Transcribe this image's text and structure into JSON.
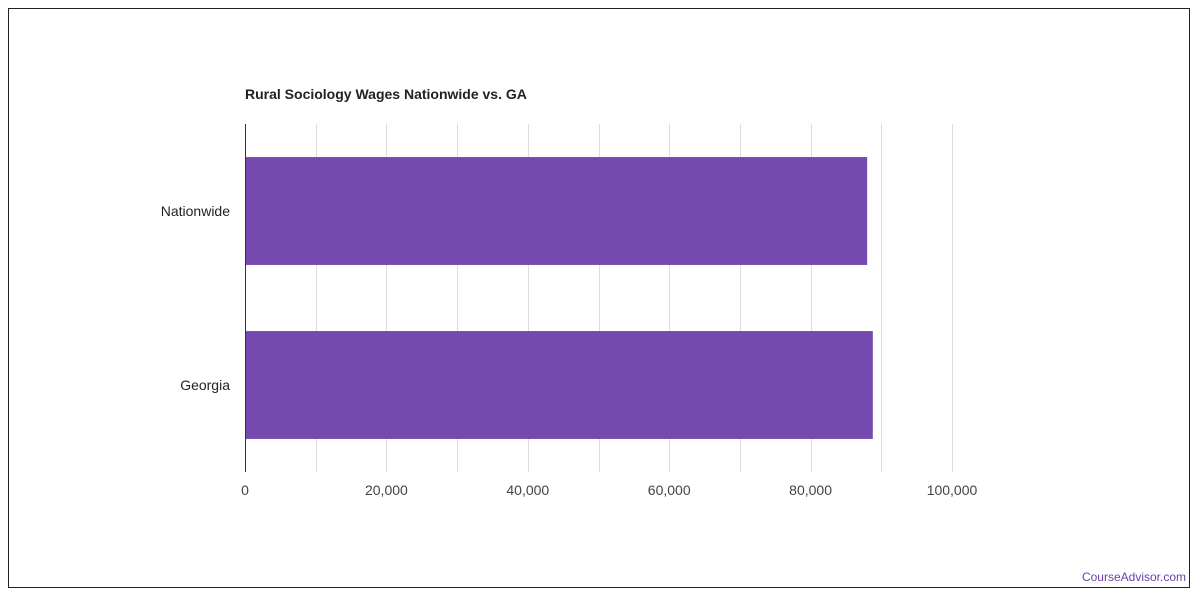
{
  "chart_data": {
    "type": "bar",
    "orientation": "horizontal",
    "title": "Rural Sociology Wages Nationwide vs. GA",
    "categories": [
      "Nationwide",
      "Georgia"
    ],
    "values": [
      88000,
      88800
    ],
    "xlim": [
      0,
      100000
    ],
    "x_ticks": [
      0,
      20000,
      40000,
      60000,
      80000,
      100000
    ],
    "x_tick_labels": [
      "0",
      "20,000",
      "40,000",
      "60,000",
      "80,000",
      "100,000"
    ],
    "grid": true,
    "bar_color": "#7549ad",
    "xlabel": "",
    "ylabel": ""
  },
  "credit": "CourseAdvisor.com",
  "colors": {
    "credit": "#6a3fb0",
    "grid": "#dddddd",
    "axis": "#333333"
  }
}
